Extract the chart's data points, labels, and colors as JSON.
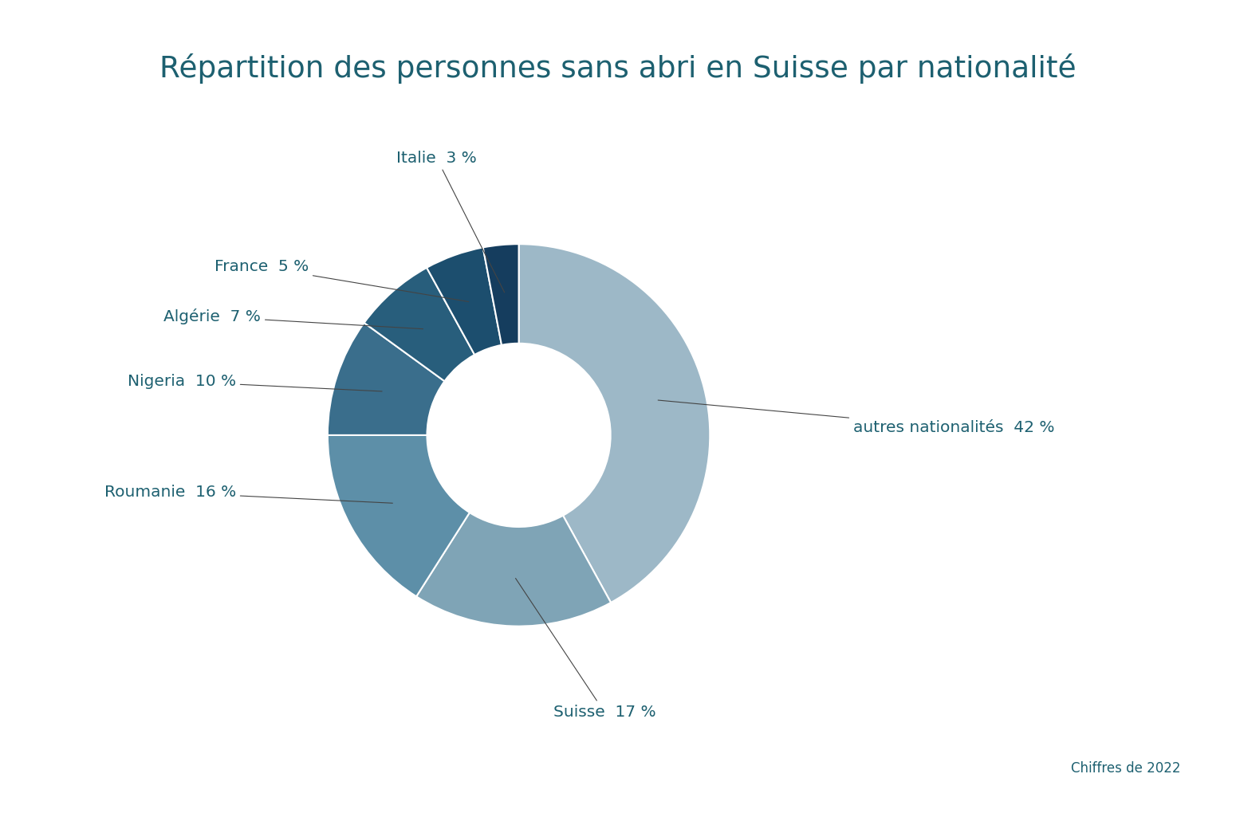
{
  "title": "Répartition des personnes sans abri en Suisse par nationalité",
  "subtitle": "Chiffres de 2022",
  "labels": [
    "autres nationalités",
    "Suisse",
    "Roumanie",
    "Nigeria",
    "Algérie",
    "France",
    "Italie"
  ],
  "values": [
    42,
    17,
    16,
    10,
    7,
    5,
    3
  ],
  "colors": [
    "#9db8c7",
    "#7fa4b6",
    "#5d8fa8",
    "#3a6e8c",
    "#285e7c",
    "#1c4e6e",
    "#153d5e"
  ],
  "text_color": "#1d6070",
  "background_color": "#ffffff",
  "title_fontsize": 27,
  "label_fontsize": 14.5,
  "subtitle_fontsize": 12
}
